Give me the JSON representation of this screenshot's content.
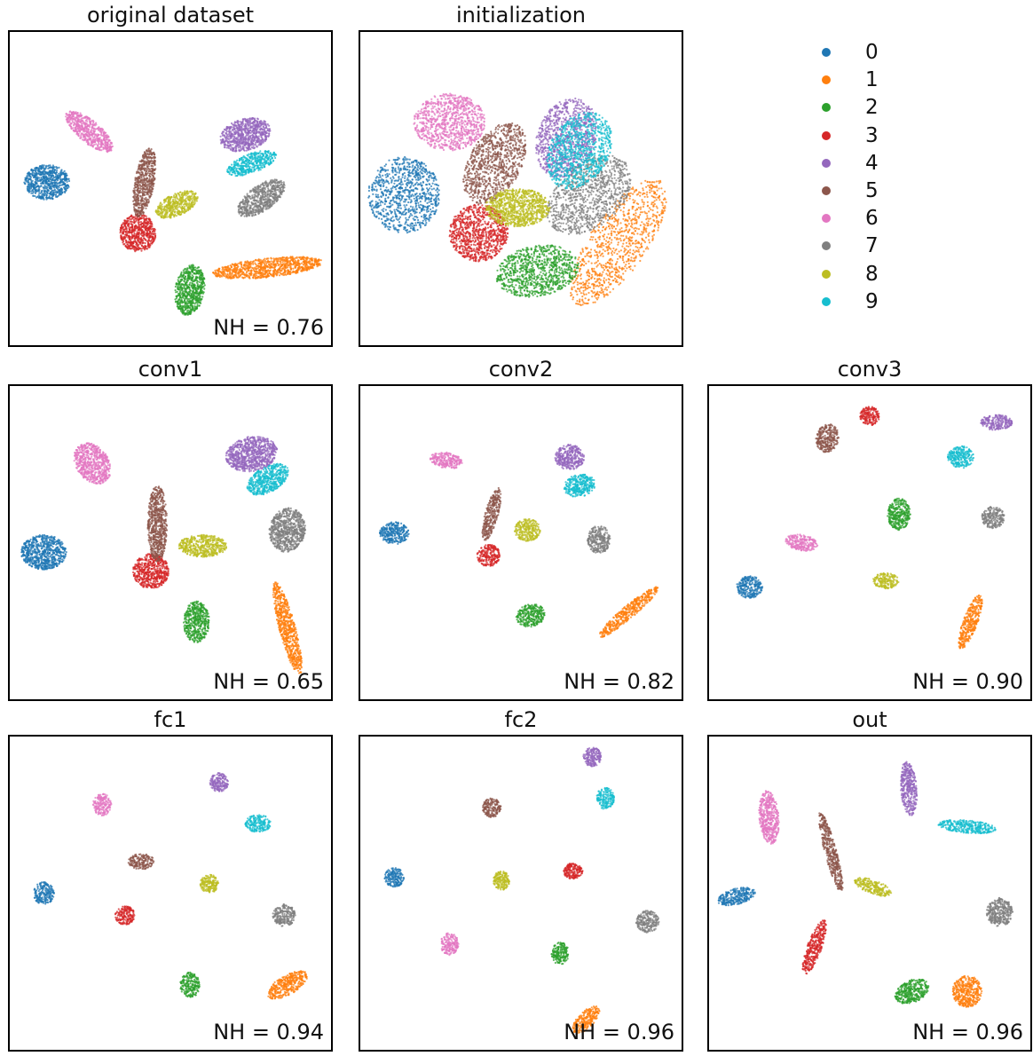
{
  "chart_data": [
    {
      "type": "scatter",
      "title": "original dataset",
      "annotation": "NH = 0.76",
      "clusters": [
        {
          "label": "0",
          "cx": 0.12,
          "cy": 0.48,
          "rx": 0.07,
          "ry": 0.055,
          "rot": 0
        },
        {
          "label": "1",
          "cx": 0.8,
          "cy": 0.75,
          "rx": 0.17,
          "ry": 0.03,
          "rot": -6
        },
        {
          "label": "2",
          "cx": 0.56,
          "cy": 0.82,
          "rx": 0.045,
          "ry": 0.08,
          "rot": 10
        },
        {
          "label": "3",
          "cx": 0.4,
          "cy": 0.64,
          "rx": 0.055,
          "ry": 0.06,
          "rot": 0
        },
        {
          "label": "4",
          "cx": 0.73,
          "cy": 0.33,
          "rx": 0.08,
          "ry": 0.05,
          "rot": -15
        },
        {
          "label": "5",
          "cx": 0.42,
          "cy": 0.48,
          "rx": 0.03,
          "ry": 0.11,
          "rot": 10
        },
        {
          "label": "6",
          "cx": 0.25,
          "cy": 0.32,
          "rx": 0.09,
          "ry": 0.035,
          "rot": 40
        },
        {
          "label": "7",
          "cx": 0.78,
          "cy": 0.53,
          "rx": 0.085,
          "ry": 0.04,
          "rot": -35
        },
        {
          "label": "8",
          "cx": 0.52,
          "cy": 0.55,
          "rx": 0.07,
          "ry": 0.035,
          "rot": -25
        },
        {
          "label": "9",
          "cx": 0.75,
          "cy": 0.42,
          "rx": 0.08,
          "ry": 0.03,
          "rot": -20
        }
      ]
    },
    {
      "type": "scatter",
      "title": "initialization",
      "annotation": "",
      "clusters": [
        {
          "label": "0",
          "cx": 0.14,
          "cy": 0.52,
          "rx": 0.11,
          "ry": 0.12,
          "rot": 0
        },
        {
          "label": "1",
          "cx": 0.8,
          "cy": 0.67,
          "rx": 0.23,
          "ry": 0.09,
          "rot": -55
        },
        {
          "label": "2",
          "cx": 0.55,
          "cy": 0.76,
          "rx": 0.13,
          "ry": 0.08,
          "rot": -10
        },
        {
          "label": "3",
          "cx": 0.37,
          "cy": 0.64,
          "rx": 0.09,
          "ry": 0.09,
          "rot": 0
        },
        {
          "label": "4",
          "cx": 0.64,
          "cy": 0.34,
          "rx": 0.09,
          "ry": 0.13,
          "rot": 20
        },
        {
          "label": "5",
          "cx": 0.42,
          "cy": 0.42,
          "rx": 0.08,
          "ry": 0.14,
          "rot": 30
        },
        {
          "label": "6",
          "cx": 0.28,
          "cy": 0.29,
          "rx": 0.11,
          "ry": 0.09,
          "rot": 0
        },
        {
          "label": "7",
          "cx": 0.71,
          "cy": 0.52,
          "rx": 0.15,
          "ry": 0.1,
          "rot": -40
        },
        {
          "label": "8",
          "cx": 0.49,
          "cy": 0.56,
          "rx": 0.1,
          "ry": 0.06,
          "rot": 0
        },
        {
          "label": "9",
          "cx": 0.68,
          "cy": 0.38,
          "rx": 0.09,
          "ry": 0.13,
          "rot": 30
        }
      ]
    },
    {
      "type": "scatter",
      "title": "conv1",
      "annotation": "NH = 0.65",
      "clusters": [
        {
          "label": "0",
          "cx": 0.11,
          "cy": 0.53,
          "rx": 0.07,
          "ry": 0.055,
          "rot": 0
        },
        {
          "label": "1",
          "cx": 0.86,
          "cy": 0.77,
          "rx": 0.025,
          "ry": 0.15,
          "rot": -15
        },
        {
          "label": "2",
          "cx": 0.58,
          "cy": 0.75,
          "rx": 0.04,
          "ry": 0.065,
          "rot": 0
        },
        {
          "label": "3",
          "cx": 0.44,
          "cy": 0.59,
          "rx": 0.055,
          "ry": 0.055,
          "rot": 0
        },
        {
          "label": "4",
          "cx": 0.75,
          "cy": 0.22,
          "rx": 0.08,
          "ry": 0.055,
          "rot": -10
        },
        {
          "label": "5",
          "cx": 0.46,
          "cy": 0.44,
          "rx": 0.03,
          "ry": 0.12,
          "rot": 0
        },
        {
          "label": "6",
          "cx": 0.26,
          "cy": 0.25,
          "rx": 0.05,
          "ry": 0.07,
          "rot": -35
        },
        {
          "label": "7",
          "cx": 0.86,
          "cy": 0.46,
          "rx": 0.055,
          "ry": 0.07,
          "rot": 10
        },
        {
          "label": "8",
          "cx": 0.6,
          "cy": 0.51,
          "rx": 0.075,
          "ry": 0.035,
          "rot": 0
        },
        {
          "label": "9",
          "cx": 0.8,
          "cy": 0.3,
          "rx": 0.07,
          "ry": 0.04,
          "rot": -30
        }
      ]
    },
    {
      "type": "scatter",
      "title": "conv2",
      "annotation": "NH = 0.82",
      "clusters": [
        {
          "label": "0",
          "cx": 0.11,
          "cy": 0.47,
          "rx": 0.045,
          "ry": 0.035,
          "rot": 0
        },
        {
          "label": "1",
          "cx": 0.83,
          "cy": 0.72,
          "rx": 0.12,
          "ry": 0.02,
          "rot": -40
        },
        {
          "label": "2",
          "cx": 0.53,
          "cy": 0.73,
          "rx": 0.045,
          "ry": 0.035,
          "rot": -15
        },
        {
          "label": "3",
          "cx": 0.4,
          "cy": 0.54,
          "rx": 0.035,
          "ry": 0.035,
          "rot": 0
        },
        {
          "label": "4",
          "cx": 0.65,
          "cy": 0.23,
          "rx": 0.045,
          "ry": 0.04,
          "rot": 0
        },
        {
          "label": "5",
          "cx": 0.41,
          "cy": 0.41,
          "rx": 0.02,
          "ry": 0.085,
          "rot": 15
        },
        {
          "label": "6",
          "cx": 0.27,
          "cy": 0.24,
          "rx": 0.05,
          "ry": 0.025,
          "rot": 10
        },
        {
          "label": "7",
          "cx": 0.74,
          "cy": 0.49,
          "rx": 0.035,
          "ry": 0.045,
          "rot": 0
        },
        {
          "label": "8",
          "cx": 0.52,
          "cy": 0.46,
          "rx": 0.04,
          "ry": 0.035,
          "rot": 0
        },
        {
          "label": "9",
          "cx": 0.68,
          "cy": 0.32,
          "rx": 0.05,
          "ry": 0.035,
          "rot": -10
        }
      ]
    },
    {
      "type": "scatter",
      "title": "conv3",
      "annotation": "NH = 0.90",
      "clusters": [
        {
          "label": "0",
          "cx": 0.13,
          "cy": 0.64,
          "rx": 0.04,
          "ry": 0.035,
          "rot": 0
        },
        {
          "label": "1",
          "cx": 0.81,
          "cy": 0.75,
          "rx": 0.022,
          "ry": 0.09,
          "rot": 20
        },
        {
          "label": "2",
          "cx": 0.59,
          "cy": 0.41,
          "rx": 0.035,
          "ry": 0.05,
          "rot": 0
        },
        {
          "label": "3",
          "cx": 0.5,
          "cy": 0.1,
          "rx": 0.03,
          "ry": 0.03,
          "rot": 0
        },
        {
          "label": "4",
          "cx": 0.89,
          "cy": 0.12,
          "rx": 0.05,
          "ry": 0.025,
          "rot": 0
        },
        {
          "label": "5",
          "cx": 0.37,
          "cy": 0.17,
          "rx": 0.035,
          "ry": 0.045,
          "rot": 15
        },
        {
          "label": "6",
          "cx": 0.29,
          "cy": 0.5,
          "rx": 0.05,
          "ry": 0.025,
          "rot": 10
        },
        {
          "label": "7",
          "cx": 0.88,
          "cy": 0.42,
          "rx": 0.035,
          "ry": 0.035,
          "rot": 0
        },
        {
          "label": "8",
          "cx": 0.55,
          "cy": 0.62,
          "rx": 0.04,
          "ry": 0.025,
          "rot": 0
        },
        {
          "label": "9",
          "cx": 0.78,
          "cy": 0.23,
          "rx": 0.04,
          "ry": 0.035,
          "rot": 0
        }
      ]
    },
    {
      "type": "scatter",
      "title": "fc1",
      "annotation": "NH = 0.94",
      "clusters": [
        {
          "label": "0",
          "cx": 0.11,
          "cy": 0.5,
          "rx": 0.032,
          "ry": 0.035,
          "rot": 0
        },
        {
          "label": "1",
          "cx": 0.86,
          "cy": 0.79,
          "rx": 0.07,
          "ry": 0.03,
          "rot": -30
        },
        {
          "label": "2",
          "cx": 0.56,
          "cy": 0.79,
          "rx": 0.03,
          "ry": 0.04,
          "rot": 0
        },
        {
          "label": "3",
          "cx": 0.36,
          "cy": 0.57,
          "rx": 0.03,
          "ry": 0.03,
          "rot": 0
        },
        {
          "label": "4",
          "cx": 0.65,
          "cy": 0.15,
          "rx": 0.028,
          "ry": 0.03,
          "rot": 0
        },
        {
          "label": "5",
          "cx": 0.41,
          "cy": 0.4,
          "rx": 0.04,
          "ry": 0.025,
          "rot": 0
        },
        {
          "label": "6",
          "cx": 0.29,
          "cy": 0.22,
          "rx": 0.028,
          "ry": 0.035,
          "rot": 0
        },
        {
          "label": "7",
          "cx": 0.85,
          "cy": 0.57,
          "rx": 0.035,
          "ry": 0.035,
          "rot": 0
        },
        {
          "label": "8",
          "cx": 0.62,
          "cy": 0.47,
          "rx": 0.028,
          "ry": 0.03,
          "rot": 0
        },
        {
          "label": "9",
          "cx": 0.77,
          "cy": 0.28,
          "rx": 0.04,
          "ry": 0.028,
          "rot": 0
        }
      ]
    },
    {
      "type": "scatter",
      "title": "fc2",
      "annotation": "NH = 0.96",
      "clusters": [
        {
          "label": "0",
          "cx": 0.11,
          "cy": 0.45,
          "rx": 0.03,
          "ry": 0.03,
          "rot": 0
        },
        {
          "label": "1",
          "cx": 0.7,
          "cy": 0.9,
          "rx": 0.055,
          "ry": 0.025,
          "rot": -45
        },
        {
          "label": "2",
          "cx": 0.62,
          "cy": 0.69,
          "rx": 0.028,
          "ry": 0.035,
          "rot": 0
        },
        {
          "label": "3",
          "cx": 0.66,
          "cy": 0.43,
          "rx": 0.03,
          "ry": 0.025,
          "rot": 0
        },
        {
          "label": "4",
          "cx": 0.72,
          "cy": 0.07,
          "rx": 0.028,
          "ry": 0.03,
          "rot": 0
        },
        {
          "label": "5",
          "cx": 0.41,
          "cy": 0.23,
          "rx": 0.028,
          "ry": 0.03,
          "rot": 0
        },
        {
          "label": "6",
          "cx": 0.28,
          "cy": 0.66,
          "rx": 0.028,
          "ry": 0.035,
          "rot": 0
        },
        {
          "label": "7",
          "cx": 0.89,
          "cy": 0.59,
          "rx": 0.035,
          "ry": 0.035,
          "rot": 0
        },
        {
          "label": "8",
          "cx": 0.44,
          "cy": 0.46,
          "rx": 0.025,
          "ry": 0.03,
          "rot": 0
        },
        {
          "label": "9",
          "cx": 0.76,
          "cy": 0.2,
          "rx": 0.028,
          "ry": 0.035,
          "rot": 0
        }
      ]
    },
    {
      "type": "scatter",
      "title": "out",
      "annotation": "NH = 0.96",
      "clusters": [
        {
          "label": "0",
          "cx": 0.09,
          "cy": 0.51,
          "rx": 0.06,
          "ry": 0.025,
          "rot": -15
        },
        {
          "label": "1",
          "cx": 0.8,
          "cy": 0.81,
          "rx": 0.045,
          "ry": 0.05,
          "rot": 0
        },
        {
          "label": "2",
          "cx": 0.63,
          "cy": 0.81,
          "rx": 0.055,
          "ry": 0.035,
          "rot": -25
        },
        {
          "label": "3",
          "cx": 0.33,
          "cy": 0.67,
          "rx": 0.022,
          "ry": 0.09,
          "rot": 20
        },
        {
          "label": "4",
          "cx": 0.62,
          "cy": 0.17,
          "rx": 0.025,
          "ry": 0.085,
          "rot": -5
        },
        {
          "label": "5",
          "cx": 0.38,
          "cy": 0.37,
          "rx": 0.018,
          "ry": 0.13,
          "rot": -15
        },
        {
          "label": "6",
          "cx": 0.19,
          "cy": 0.26,
          "rx": 0.03,
          "ry": 0.085,
          "rot": -5
        },
        {
          "label": "7",
          "cx": 0.9,
          "cy": 0.56,
          "rx": 0.04,
          "ry": 0.045,
          "rot": 0
        },
        {
          "label": "8",
          "cx": 0.51,
          "cy": 0.48,
          "rx": 0.06,
          "ry": 0.022,
          "rot": 20
        },
        {
          "label": "9",
          "cx": 0.8,
          "cy": 0.29,
          "rx": 0.09,
          "ry": 0.02,
          "rot": 5
        }
      ]
    }
  ],
  "legend": {
    "placement": "top-right",
    "items": [
      {
        "label": "0",
        "color": "#1f77b4"
      },
      {
        "label": "1",
        "color": "#ff7f0e"
      },
      {
        "label": "2",
        "color": "#2ca02c"
      },
      {
        "label": "3",
        "color": "#d62728"
      },
      {
        "label": "4",
        "color": "#9467bd"
      },
      {
        "label": "5",
        "color": "#8c564b"
      },
      {
        "label": "6",
        "color": "#e377c2"
      },
      {
        "label": "7",
        "color": "#7f7f7f"
      },
      {
        "label": "8",
        "color": "#bcbd22"
      },
      {
        "label": "9",
        "color": "#17becf"
      }
    ]
  }
}
